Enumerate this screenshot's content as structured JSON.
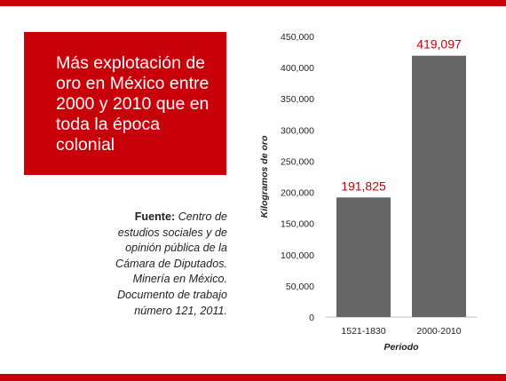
{
  "headline": "Más explotación de oro en México entre 2000 y 2010 que en toda la época colonial",
  "source": {
    "label": "Fuente:",
    "text": "Centro de estudios sociales y de opinión pública de la Cámara de Diputados. Minería en México. Documento de trabajo número 121, 2011."
  },
  "colors": {
    "accent": "#c8000a",
    "bar": "#666666",
    "text": "#222222"
  },
  "chart_data": {
    "type": "bar",
    "categories": [
      "1521-1830",
      "2000-2010"
    ],
    "values": [
      191825,
      419097
    ],
    "value_labels": [
      "191,825",
      "419,097"
    ],
    "xlabel": "Periodo",
    "ylabel": "Kilogramos de oro",
    "ylim": [
      0,
      450000
    ],
    "yticks": [
      0,
      50000,
      100000,
      150000,
      200000,
      250000,
      300000,
      350000,
      400000,
      450000
    ],
    "ytick_labels": [
      "0",
      "50,000",
      "100,000",
      "150,000",
      "200,000",
      "250,000",
      "300,000",
      "350,000",
      "400,000",
      "450,000"
    ],
    "grid": false
  }
}
